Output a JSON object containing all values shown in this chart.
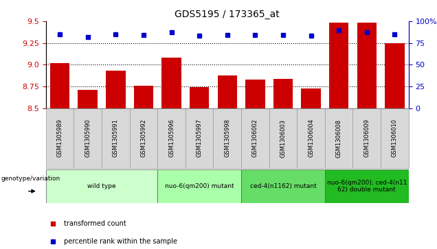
{
  "title": "GDS5195 / 173365_at",
  "samples": [
    "GSM1305989",
    "GSM1305990",
    "GSM1305991",
    "GSM1305992",
    "GSM1305996",
    "GSM1305997",
    "GSM1305998",
    "GSM1306002",
    "GSM1306003",
    "GSM1306004",
    "GSM1306008",
    "GSM1306009",
    "GSM1306010"
  ],
  "bar_values": [
    9.02,
    8.71,
    8.93,
    8.76,
    9.08,
    8.74,
    8.88,
    8.83,
    8.84,
    8.73,
    9.48,
    9.48,
    9.25
  ],
  "dot_values": [
    85,
    82,
    85,
    84,
    87,
    83,
    84,
    84,
    84,
    83,
    90,
    87,
    85
  ],
  "bar_bottom": 8.5,
  "ylim_left": [
    8.5,
    9.5
  ],
  "ylim_right": [
    0,
    100
  ],
  "yticks_left": [
    8.5,
    8.75,
    9.0,
    9.25,
    9.5
  ],
  "yticks_right": [
    0,
    25,
    50,
    75,
    100
  ],
  "bar_color": "#cc0000",
  "dot_color": "#0000cc",
  "groups": [
    {
      "label": "wild type",
      "indices": [
        0,
        1,
        2,
        3
      ],
      "color": "#ccffcc"
    },
    {
      "label": "nuo-6(qm200) mutant",
      "indices": [
        4,
        5,
        6
      ],
      "color": "#aaffaa"
    },
    {
      "label": "ced-4(n1162) mutant",
      "indices": [
        7,
        8,
        9
      ],
      "color": "#66dd66"
    },
    {
      "label": "nuo-6(qm200); ced-4(n11\n62) double mutant",
      "indices": [
        10,
        11,
        12
      ],
      "color": "#22bb22"
    }
  ],
  "genotype_label": "genotype/variation",
  "legend_items": [
    {
      "label": "transformed count",
      "color": "#cc0000"
    },
    {
      "label": "percentile rank within the sample",
      "color": "#0000cc"
    }
  ],
  "hlines": [
    8.75,
    9.0,
    9.25
  ],
  "sample_box_color": "#d8d8d8",
  "sample_box_edge": "#999999"
}
